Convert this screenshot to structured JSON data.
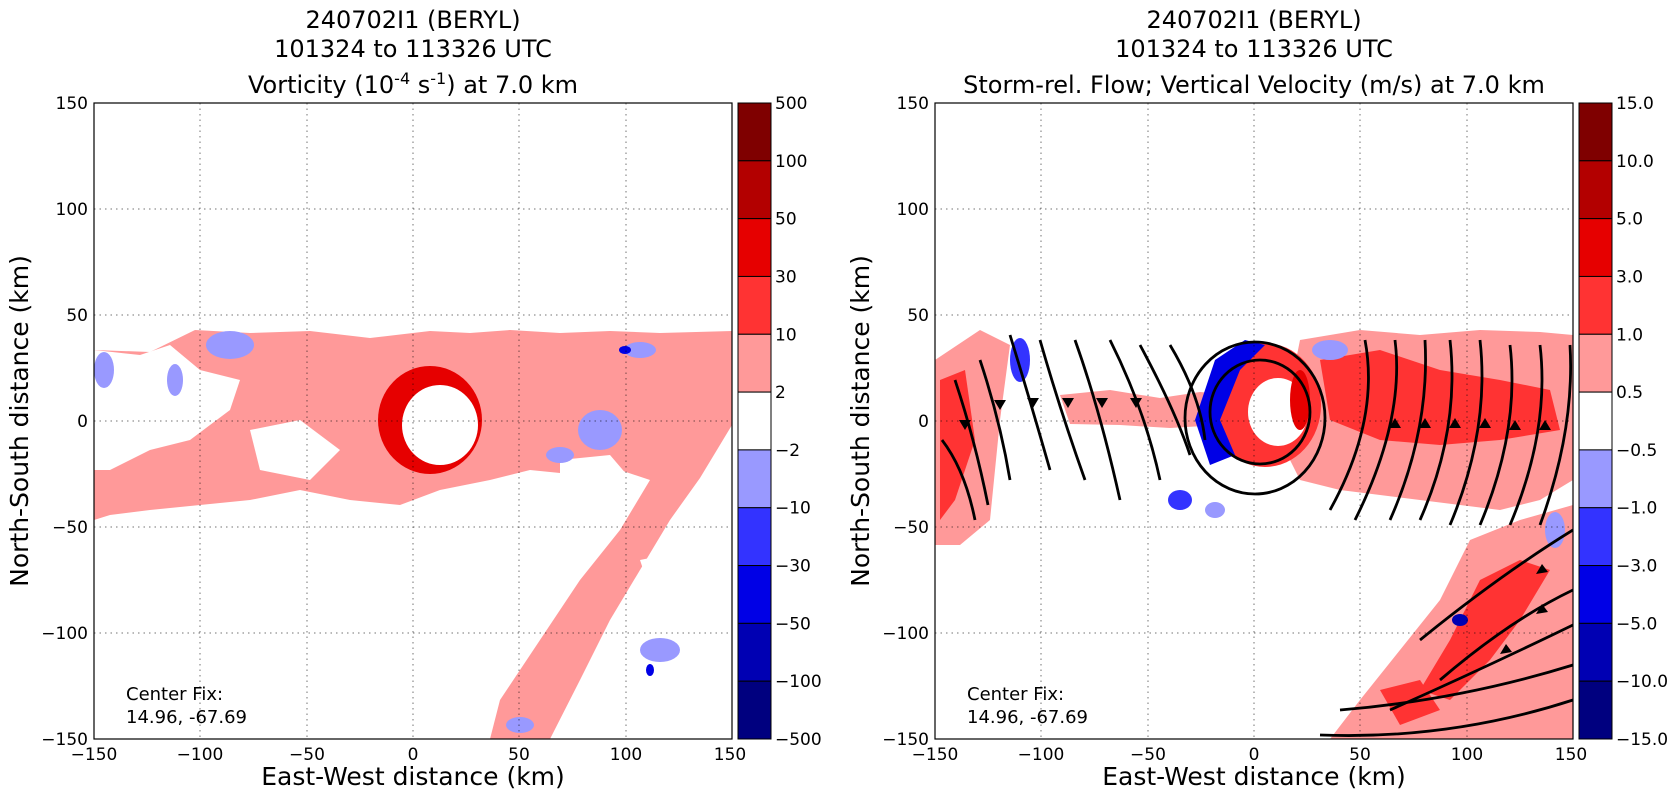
{
  "chart_data": [
    {
      "type": "heatmap",
      "title_lines": [
        "240702I1 (BERYL)",
        "101324 to 113326 UTC"
      ],
      "field_title": {
        "prefix": "Vorticity (10",
        "sup1": "-4",
        "mid": " s",
        "sup2": "-1",
        "suffix": ") at 7.0 km"
      },
      "xlabel": "East-West distance (km)",
      "ylabel": "North-South distance (km)",
      "xlim": [
        -150,
        150
      ],
      "ylim": [
        -150,
        150
      ],
      "x_ticks": [
        "−150",
        "−100",
        "−50",
        "0",
        "50",
        "100",
        "150"
      ],
      "y_ticks": [
        "150",
        "100",
        "50",
        "0",
        "−50",
        "−100",
        "−150"
      ],
      "grid": true,
      "center_fix_label": "Center Fix:",
      "center_fix_value": "14.96, -67.69",
      "colorbar": {
        "labels": [
          "500",
          "100",
          "50",
          "30",
          "10",
          "2",
          "−2",
          "−10",
          "−30",
          "−50",
          "−100",
          "−500"
        ],
        "colors": [
          "#7f0000",
          "#b30000",
          "#e60000",
          "#ff3333",
          "#ff9999",
          "#ffffff",
          "#9999ff",
          "#3333ff",
          "#0000e6",
          "#0000b3",
          "#00007f"
        ]
      }
    },
    {
      "type": "heatmap",
      "title_lines": [
        "240702I1 (BERYL)",
        "101324 to 113326 UTC"
      ],
      "field_title_text": "Storm-rel. Flow; Vertical Velocity (m/s) at 7.0 km",
      "xlabel": "East-West distance (km)",
      "ylabel": "North-South distance (km)",
      "xlim": [
        -150,
        150
      ],
      "ylim": [
        -150,
        150
      ],
      "x_ticks": [
        "−150",
        "−100",
        "−50",
        "0",
        "50",
        "100",
        "150"
      ],
      "y_ticks": [
        "150",
        "100",
        "50",
        "0",
        "−50",
        "−100",
        "−150"
      ],
      "grid": true,
      "center_fix_label": "Center Fix:",
      "center_fix_value": "14.96, -67.69",
      "colorbar": {
        "labels": [
          "15.0",
          "10.0",
          "5.0",
          "3.0",
          "1.0",
          "0.5",
          "−0.5",
          "−1.0",
          "−3.0",
          "−5.0",
          "−10.0",
          "−15.0"
        ],
        "colors": [
          "#7f0000",
          "#b30000",
          "#e60000",
          "#ff3333",
          "#ff9999",
          "#ffffff",
          "#9999ff",
          "#3333ff",
          "#0000e6",
          "#0000b3",
          "#00007f"
        ]
      }
    }
  ]
}
